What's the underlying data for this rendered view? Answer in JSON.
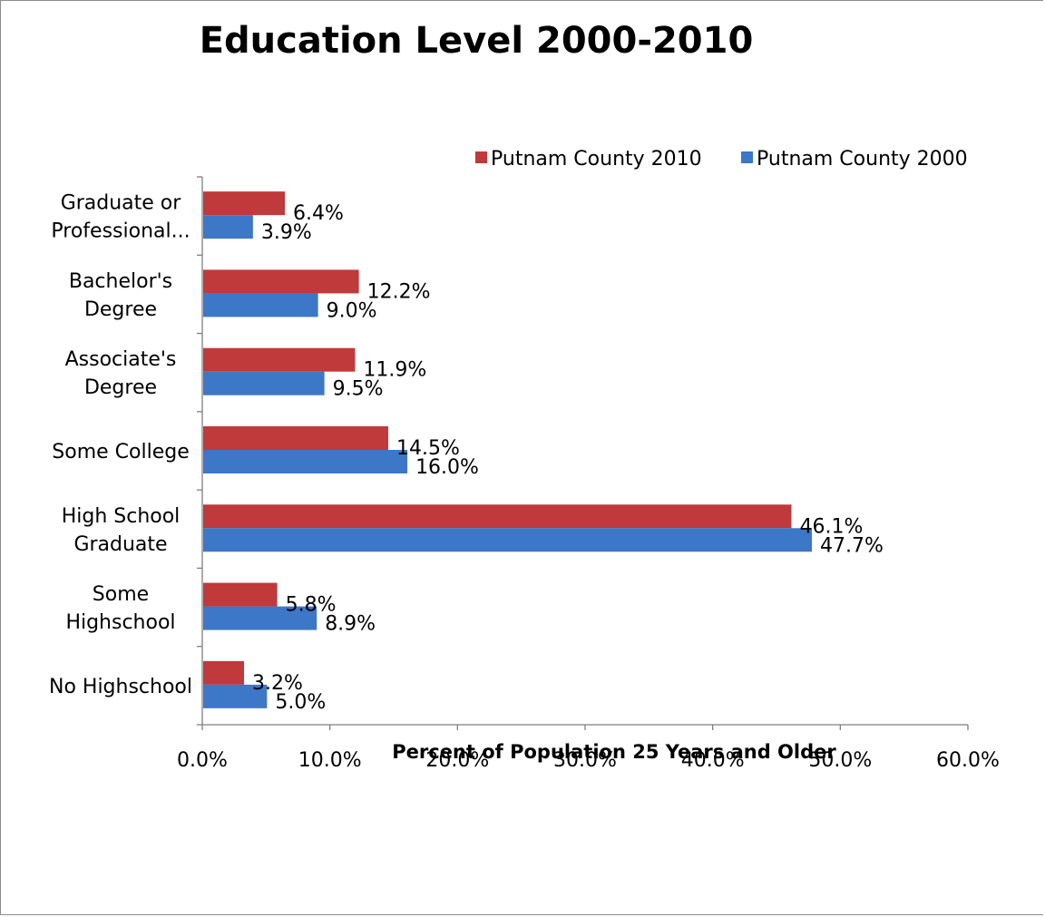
{
  "chart_data": {
    "type": "bar",
    "orientation": "horizontal",
    "title": "Education Level 2000-2010",
    "xlabel": "Percent of Population 25 Years and Older",
    "ylabel": "",
    "xlim": [
      0,
      60
    ],
    "x_ticks": [
      "0.0%",
      "10.0%",
      "20.0%",
      "30.0%",
      "40.0%",
      "50.0%",
      "60.0%"
    ],
    "grid": false,
    "legend_position": "top-right",
    "categories": [
      [
        "No Highschool"
      ],
      [
        "Some",
        "Highschool"
      ],
      [
        "High School",
        "Graduate"
      ],
      [
        "Some College"
      ],
      [
        "Associate's",
        "Degree"
      ],
      [
        "Bachelor's",
        "Degree"
      ],
      [
        "Graduate or",
        "Professional..."
      ]
    ],
    "series": [
      {
        "name": "Putnam County 2010",
        "color": "#C0393B",
        "values": [
          3.2,
          5.8,
          46.1,
          14.5,
          11.9,
          12.2,
          6.4
        ],
        "labels": [
          "3.2%",
          "5.8%",
          "46.1%",
          "14.5%",
          "11.9%",
          "12.2%",
          "6.4%"
        ]
      },
      {
        "name": "Putnam County 2000",
        "color": "#3D77C7",
        "values": [
          5.0,
          8.9,
          47.7,
          16.0,
          9.5,
          9.0,
          3.9
        ],
        "labels": [
          "5.0%",
          "8.9%",
          "47.7%",
          "16.0%",
          "9.5%",
          "9.0%",
          "3.9%"
        ]
      }
    ]
  }
}
